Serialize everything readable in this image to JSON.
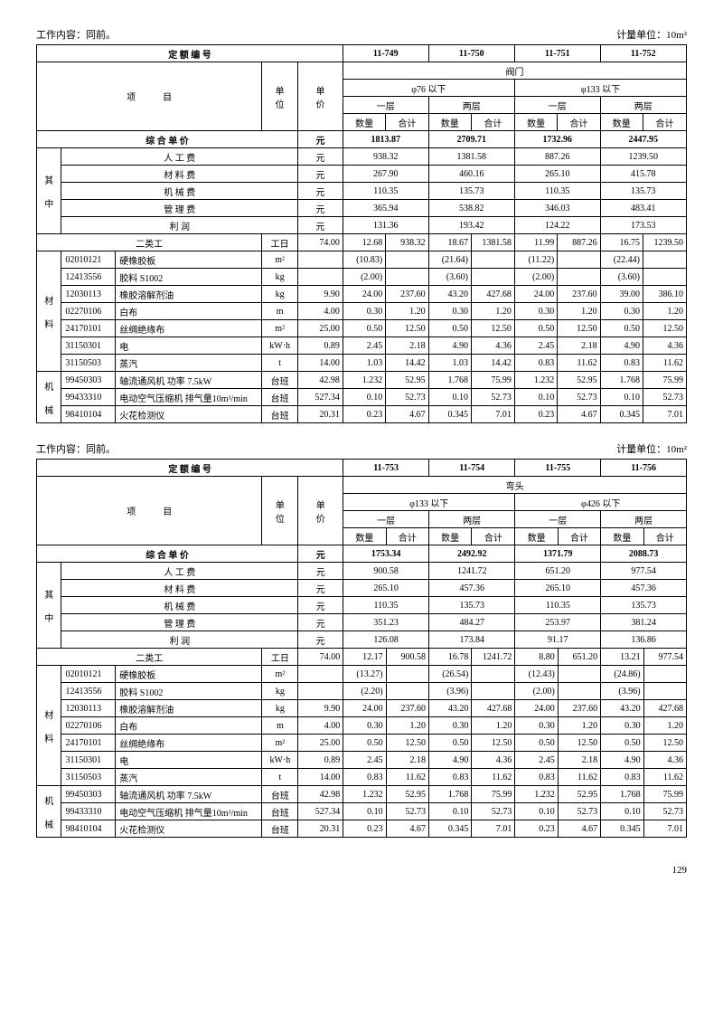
{
  "t1": {
    "workContent": "工作内容：同前。",
    "unit": "计量单位：10m²",
    "quotaLabel": "定 额 编 号",
    "codes": [
      "11-749",
      "11-750",
      "11-751",
      "11-752"
    ],
    "itemLabel": "项",
    "itemLabel2": "目",
    "unitCol": "单位",
    "priceCol": "单价",
    "cat": "阀门",
    "diam1": "φ76 以下",
    "diam2": "φ133 以下",
    "layer1": "一层",
    "layer2": "两层",
    "qty": "数量",
    "sum": "合计",
    "compPrice": "综 合 单 价",
    "yuan": "元",
    "totals": [
      "1813.87",
      "2709.71",
      "1732.96",
      "2447.95"
    ],
    "qizhong": "其中",
    "breakdown": [
      {
        "n": "人 工 费",
        "v": [
          "938.32",
          "1381.58",
          "887.26",
          "1239.50"
        ]
      },
      {
        "n": "材 料 费",
        "v": [
          "267.90",
          "460.16",
          "265.10",
          "415.78"
        ]
      },
      {
        "n": "机 械 费",
        "v": [
          "110.35",
          "135.73",
          "110.35",
          "135.73"
        ]
      },
      {
        "n": "管 理 费",
        "v": [
          "365.94",
          "538.82",
          "346.03",
          "483.41"
        ]
      },
      {
        "n": "利   润",
        "v": [
          "131.36",
          "193.42",
          "124.22",
          "173.53"
        ]
      }
    ],
    "labor": {
      "n": "二类工",
      "u": "工日",
      "p": "74.00",
      "c": [
        "12.68",
        "938.32",
        "18.67",
        "1381.58",
        "11.99",
        "887.26",
        "16.75",
        "1239.50"
      ]
    },
    "matLabel": "材料",
    "materials": [
      {
        "code": "02010121",
        "n": "硬橡胶板",
        "u": "m²",
        "p": "",
        "c": [
          "(10.83)",
          "",
          "(21.64)",
          "",
          "(11.22)",
          "",
          "(22.44)",
          ""
        ]
      },
      {
        "code": "12413556",
        "n": "胶料 S1002",
        "u": "kg",
        "p": "",
        "c": [
          "(2.00)",
          "",
          "(3.60)",
          "",
          "(2.00)",
          "",
          "(3.60)",
          ""
        ]
      },
      {
        "code": "12030113",
        "n": "橡胶溶解剂油",
        "u": "kg",
        "p": "9.90",
        "c": [
          "24.00",
          "237.60",
          "43.20",
          "427.68",
          "24.00",
          "237.60",
          "39.00",
          "386.10"
        ]
      },
      {
        "code": "02270106",
        "n": "白布",
        "u": "m",
        "p": "4.00",
        "c": [
          "0.30",
          "1.20",
          "0.30",
          "1.20",
          "0.30",
          "1.20",
          "0.30",
          "1.20"
        ]
      },
      {
        "code": "24170101",
        "n": "丝绸绝缘布",
        "u": "m²",
        "p": "25.00",
        "c": [
          "0.50",
          "12.50",
          "0.50",
          "12.50",
          "0.50",
          "12.50",
          "0.50",
          "12.50"
        ]
      },
      {
        "code": "31150301",
        "n": "电",
        "u": "kW·h",
        "p": "0.89",
        "c": [
          "2.45",
          "2.18",
          "4.90",
          "4.36",
          "2.45",
          "2.18",
          "4.90",
          "4.36"
        ]
      },
      {
        "code": "31150503",
        "n": "蒸汽",
        "u": "t",
        "p": "14.00",
        "c": [
          "1.03",
          "14.42",
          "1.03",
          "14.42",
          "0.83",
          "11.62",
          "0.83",
          "11.62"
        ]
      }
    ],
    "machLabel": "机械",
    "machines": [
      {
        "code": "99450303",
        "n": "轴流通风机 功率 7.5kW",
        "u": "台班",
        "p": "42.98",
        "c": [
          "1.232",
          "52.95",
          "1.768",
          "75.99",
          "1.232",
          "52.95",
          "1.768",
          "75.99"
        ]
      },
      {
        "code": "99433310",
        "n": "电动空气压缩机 排气量10m³/min",
        "u": "台班",
        "p": "527.34",
        "c": [
          "0.10",
          "52.73",
          "0.10",
          "52.73",
          "0.10",
          "52.73",
          "0.10",
          "52.73"
        ]
      },
      {
        "code": "98410104",
        "n": "火花检测仪",
        "u": "台班",
        "p": "20.31",
        "c": [
          "0.23",
          "4.67",
          "0.345",
          "7.01",
          "0.23",
          "4.67",
          "0.345",
          "7.01"
        ]
      }
    ]
  },
  "t2": {
    "workContent": "工作内容：同前。",
    "unit": "计量单位：10m²",
    "quotaLabel": "定 额 编 号",
    "codes": [
      "11-753",
      "11-754",
      "11-755",
      "11-756"
    ],
    "cat": "弯头",
    "diam1": "φ133 以下",
    "diam2": "φ426 以下",
    "totals": [
      "1753.34",
      "2492.92",
      "1371.79",
      "2088.73"
    ],
    "breakdown": [
      {
        "n": "人 工 费",
        "v": [
          "900.58",
          "1241.72",
          "651.20",
          "977.54"
        ]
      },
      {
        "n": "材 料 费",
        "v": [
          "265.10",
          "457.36",
          "265.10",
          "457.36"
        ]
      },
      {
        "n": "机 械 费",
        "v": [
          "110.35",
          "135.73",
          "110.35",
          "135.73"
        ]
      },
      {
        "n": "管 理 费",
        "v": [
          "351.23",
          "484.27",
          "253.97",
          "381.24"
        ]
      },
      {
        "n": "利   润",
        "v": [
          "126.08",
          "173.84",
          "91.17",
          "136.86"
        ]
      }
    ],
    "labor": {
      "n": "二类工",
      "u": "工日",
      "p": "74.00",
      "c": [
        "12.17",
        "900.58",
        "16.78",
        "1241.72",
        "8.80",
        "651.20",
        "13.21",
        "977.54"
      ]
    },
    "materials": [
      {
        "code": "02010121",
        "n": "硬橡胶板",
        "u": "m²",
        "p": "",
        "c": [
          "(13.27)",
          "",
          "(26.54)",
          "",
          "(12.43)",
          "",
          "(24.86)",
          ""
        ]
      },
      {
        "code": "12413556",
        "n": "胶料 S1002",
        "u": "kg",
        "p": "",
        "c": [
          "(2.20)",
          "",
          "(3.96)",
          "",
          "(2.00)",
          "",
          "(3.96)",
          ""
        ]
      },
      {
        "code": "12030113",
        "n": "橡胶溶解剂油",
        "u": "kg",
        "p": "9.90",
        "c": [
          "24.00",
          "237.60",
          "43.20",
          "427.68",
          "24.00",
          "237.60",
          "43.20",
          "427.68"
        ]
      },
      {
        "code": "02270106",
        "n": "白布",
        "u": "m",
        "p": "4.00",
        "c": [
          "0.30",
          "1.20",
          "0.30",
          "1.20",
          "0.30",
          "1.20",
          "0.30",
          "1.20"
        ]
      },
      {
        "code": "24170101",
        "n": "丝绸绝缘布",
        "u": "m²",
        "p": "25.00",
        "c": [
          "0.50",
          "12.50",
          "0.50",
          "12.50",
          "0.50",
          "12.50",
          "0.50",
          "12.50"
        ]
      },
      {
        "code": "31150301",
        "n": "电",
        "u": "kW·h",
        "p": "0.89",
        "c": [
          "2.45",
          "2.18",
          "4.90",
          "4.36",
          "2.45",
          "2.18",
          "4.90",
          "4.36"
        ]
      },
      {
        "code": "31150503",
        "n": "蒸汽",
        "u": "t",
        "p": "14.00",
        "c": [
          "0.83",
          "11.62",
          "0.83",
          "11.62",
          "0.83",
          "11.62",
          "0.83",
          "11.62"
        ]
      }
    ],
    "machines": [
      {
        "code": "99450303",
        "n": "轴流通风机 功率 7.5kW",
        "u": "台班",
        "p": "42.98",
        "c": [
          "1.232",
          "52.95",
          "1.768",
          "75.99",
          "1.232",
          "52.95",
          "1.768",
          "75.99"
        ]
      },
      {
        "code": "99433310",
        "n": "电动空气压缩机 排气量10m³/min",
        "u": "台班",
        "p": "527.34",
        "c": [
          "0.10",
          "52.73",
          "0.10",
          "52.73",
          "0.10",
          "52.73",
          "0.10",
          "52.73"
        ]
      },
      {
        "code": "98410104",
        "n": "火花检测仪",
        "u": "台班",
        "p": "20.31",
        "c": [
          "0.23",
          "4.67",
          "0.345",
          "7.01",
          "0.23",
          "4.67",
          "0.345",
          "7.01"
        ]
      }
    ]
  },
  "pagenum": "129"
}
